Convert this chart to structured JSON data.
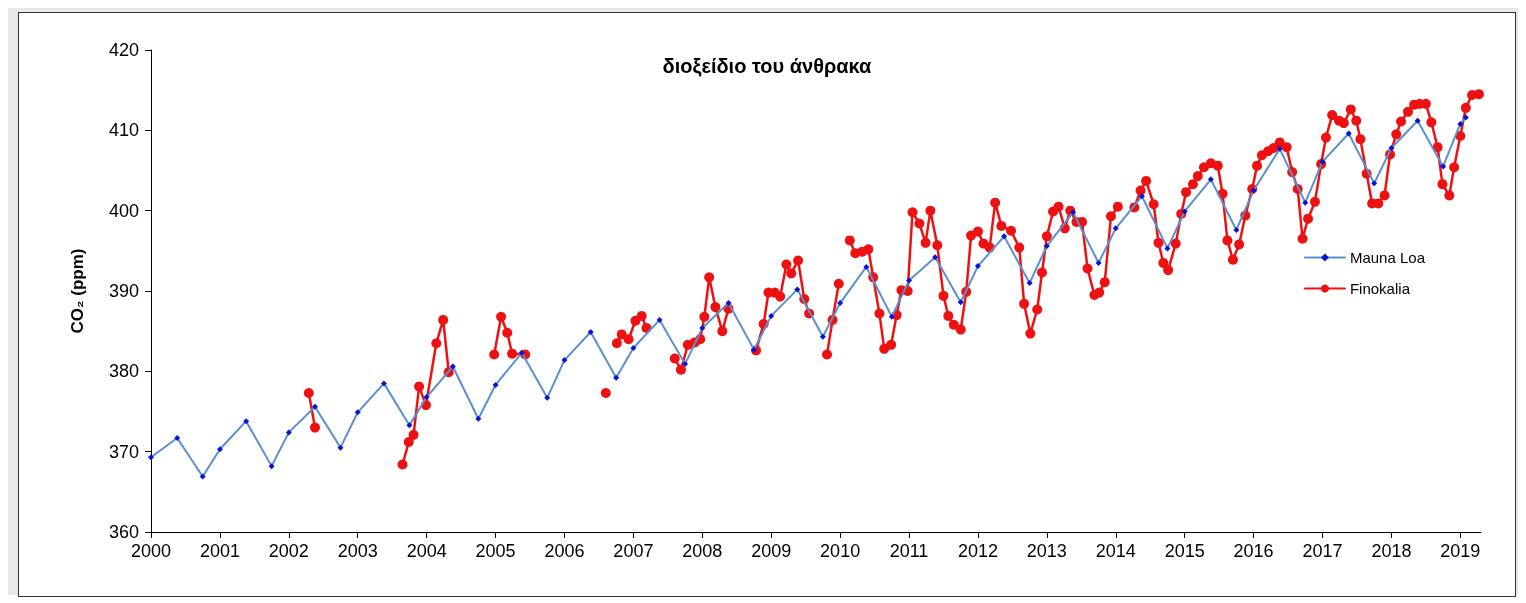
{
  "chart_data": {
    "type": "line",
    "title": "διοξείδιο του άνθρακα",
    "ylabel": "CO₂ (ppm)",
    "xlim": [
      2000,
      2019.3
    ],
    "xticks": [
      2000,
      2001,
      2002,
      2003,
      2004,
      2005,
      2006,
      2007,
      2008,
      2009,
      2010,
      2011,
      2012,
      2013,
      2014,
      2015,
      2016,
      2017,
      2018,
      2019
    ],
    "ylim": [
      360,
      420
    ],
    "yticks": [
      360,
      370,
      380,
      390,
      400,
      410,
      420
    ],
    "grid": false,
    "legend": "right",
    "line_style": "solid",
    "series": [
      {
        "name": "Mauna Loa",
        "color": "#0a14d8",
        "marker": "diamond",
        "x": [
          2000,
          2000.38,
          2000.75,
          2001,
          2001.38,
          2001.75,
          2002,
          2002.38,
          2002.75,
          2003,
          2003.38,
          2003.75,
          2004,
          2004.38,
          2004.75,
          2005,
          2005.38,
          2005.75,
          2006,
          2006.38,
          2006.75,
          2007,
          2007.38,
          2007.75,
          2008,
          2008.38,
          2008.75,
          2009,
          2009.38,
          2009.75,
          2010,
          2010.38,
          2010.75,
          2011,
          2011.38,
          2011.75,
          2012,
          2012.38,
          2012.75,
          2013,
          2013.38,
          2013.75,
          2014,
          2014.38,
          2014.75,
          2015,
          2015.38,
          2015.75,
          2016,
          2016.38,
          2016.75,
          2017,
          2017.38,
          2017.75,
          2018,
          2018.38,
          2018.75,
          2019,
          2019.08
        ],
        "values": [
          369.3,
          371.7,
          366.9,
          370.3,
          373.8,
          368.2,
          372.4,
          375.6,
          370.5,
          374.9,
          378.5,
          373.3,
          376.8,
          380.6,
          374.1,
          378.3,
          382.3,
          376.7,
          381.4,
          384.9,
          379.2,
          382.9,
          386.4,
          380.9,
          385.4,
          388.5,
          382.7,
          386.9,
          390.2,
          384.3,
          388.5,
          393.0,
          386.8,
          391.3,
          394.2,
          388.6,
          393.1,
          396.8,
          391.0,
          395.6,
          399.8,
          393.5,
          397.8,
          401.8,
          395.3,
          399.9,
          403.9,
          397.6,
          402.5,
          407.7,
          401.0,
          406.1,
          409.6,
          403.4,
          407.8,
          411.2,
          405.5,
          410.8,
          411.6
        ]
      },
      {
        "name": "Finokalia",
        "color": "#ee1111",
        "marker": "circle",
        "x": [
          2002.29,
          2002.38,
          2003,
          2003.65,
          2003.74,
          2003.81,
          2003.89,
          2003.99,
          2004.14,
          2004.24,
          2004.32,
          2004.6,
          2004.98,
          2005.08,
          2005.17,
          2005.24,
          2005.43,
          2006,
          2006.6,
          2006.7,
          2006.76,
          2006.83,
          2006.93,
          2007.03,
          2007.12,
          2007.19,
          2007.4,
          2007.6,
          2007.69,
          2007.79,
          2007.89,
          2007.97,
          2008.03,
          2008.1,
          2008.19,
          2008.29,
          2008.38,
          2008.6,
          2008.78,
          2008.89,
          2008.96,
          2009.05,
          2009.13,
          2009.22,
          2009.29,
          2009.39,
          2009.48,
          2009.55,
          2009.7,
          2009.81,
          2009.89,
          2009.98,
          2010.06,
          2010.14,
          2010.22,
          2010.32,
          2010.41,
          2010.48,
          2010.57,
          2010.64,
          2010.74,
          2010.82,
          2010.89,
          2010.98,
          2011.05,
          2011.15,
          2011.24,
          2011.31,
          2011.41,
          2011.5,
          2011.57,
          2011.65,
          2011.75,
          2011.83,
          2011.9,
          2012,
          2012.08,
          2012.17,
          2012.25,
          2012.34,
          2012.48,
          2012.6,
          2012.67,
          2012.76,
          2012.86,
          2012.93,
          2013,
          2013.09,
          2013.17,
          2013.26,
          2013.34,
          2013.43,
          2013.51,
          2013.59,
          2013.69,
          2013.76,
          2013.84,
          2013.93,
          2014.03,
          2014.15,
          2014.27,
          2014.36,
          2014.44,
          2014.55,
          2014.62,
          2014.69,
          2014.76,
          2014.87,
          2014.95,
          2015.02,
          2015.12,
          2015.19,
          2015.28,
          2015.38,
          2015.48,
          2015.55,
          2015.62,
          2015.7,
          2015.79,
          2015.88,
          2015.98,
          2016.05,
          2016.12,
          2016.21,
          2016.29,
          2016.38,
          2016.48,
          2016.56,
          2016.64,
          2016.71,
          2016.79,
          2016.89,
          2016.98,
          2017.05,
          2017.14,
          2017.24,
          2017.31,
          2017.41,
          2017.49,
          2017.55,
          2017.64,
          2017.72,
          2017.81,
          2017.9,
          2017.98,
          2018.07,
          2018.14,
          2018.24,
          2018.33,
          2018.41,
          2018.5,
          2018.58,
          2018.67,
          2018.74,
          2018.84,
          2018.91,
          2019,
          2019.08,
          2019.17,
          2019.27
        ],
        "values": [
          377.3,
          373.0,
          null,
          368.4,
          371.2,
          372.1,
          378.1,
          375.8,
          383.5,
          386.4,
          379.9,
          null,
          382.1,
          386.8,
          384.8,
          382.2,
          382.1,
          null,
          377.3,
          null,
          383.5,
          384.6,
          384.0,
          386.3,
          386.9,
          385.4,
          null,
          381.6,
          380.2,
          383.3,
          383.6,
          384.0,
          386.8,
          391.7,
          388.0,
          385.0,
          387.8,
          null,
          382.6,
          385.9,
          389.8,
          389.8,
          389.3,
          393.3,
          392.2,
          393.8,
          389.0,
          387.2,
          null,
          382.1,
          386.4,
          390.9,
          null,
          396.3,
          394.7,
          394.9,
          395.2,
          391.7,
          387.2,
          382.8,
          383.3,
          387.0,
          390.1,
          390.0,
          399.8,
          398.4,
          396.0,
          400.0,
          395.7,
          389.4,
          386.9,
          385.8,
          385.2,
          389.9,
          396.9,
          397.4,
          395.9,
          395.4,
          401.0,
          398.1,
          397.5,
          395.4,
          388.4,
          384.7,
          387.7,
          392.3,
          396.8,
          399.9,
          400.5,
          397.8,
          400.0,
          398.6,
          398.6,
          392.8,
          389.5,
          389.8,
          391.1,
          399.3,
          400.5,
          null,
          400.4,
          402.5,
          403.7,
          400.8,
          396.0,
          393.5,
          392.6,
          395.9,
          399.6,
          402.3,
          403.3,
          404.3,
          405.4,
          405.9,
          405.6,
          402.1,
          396.3,
          393.9,
          395.8,
          399.4,
          402.7,
          405.6,
          406.9,
          407.4,
          407.8,
          408.5,
          407.9,
          404.8,
          402.7,
          396.5,
          399.0,
          401.1,
          405.8,
          409.1,
          411.9,
          411.2,
          410.9,
          412.6,
          411.2,
          408.9,
          404.6,
          400.9,
          400.9,
          401.9,
          407.0,
          409.5,
          411.1,
          412.3,
          413.2,
          413.3,
          413.3,
          411.0,
          407.9,
          403.3,
          401.9,
          405.4,
          409.3,
          412.8,
          414.4,
          414.5
        ]
      }
    ]
  }
}
